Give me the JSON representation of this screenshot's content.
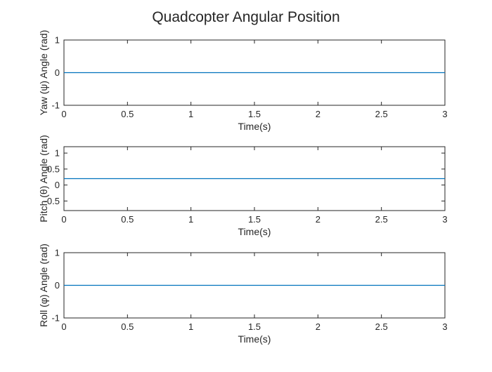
{
  "figure": {
    "title": "Quadcopter Angular Position"
  },
  "chart_data": [
    {
      "type": "line",
      "ylabel": "Yaw (ψ) Angle (rad)",
      "xlabel": "Time(s)",
      "xlim": [
        0,
        3
      ],
      "ylim": [
        -1,
        1
      ],
      "x_ticks": [
        0,
        0.5,
        1,
        1.5,
        2,
        2.5,
        3
      ],
      "x_tick_labels": [
        "0",
        "0.5",
        "1",
        "1.5",
        "2",
        "2.5",
        "3"
      ],
      "y_ticks": [
        -1,
        0,
        1
      ],
      "y_tick_labels": [
        "-1",
        "0",
        "1"
      ],
      "grid": false,
      "series": [
        {
          "color": "#0072BD",
          "x": [
            0,
            3
          ],
          "y": [
            0,
            0
          ]
        }
      ]
    },
    {
      "type": "line",
      "ylabel": "Pitch (θ) Angle (rad)",
      "xlabel": "Time(s)",
      "xlim": [
        0,
        3
      ],
      "ylim": [
        -0.8,
        1.2
      ],
      "x_ticks": [
        0,
        0.5,
        1,
        1.5,
        2,
        2.5,
        3
      ],
      "x_tick_labels": [
        "0",
        "0.5",
        "1",
        "1.5",
        "2",
        "2.5",
        "3"
      ],
      "y_ticks": [
        -0.5,
        0,
        0.5,
        1
      ],
      "y_tick_labels": [
        "-0.5",
        "0",
        "0.5",
        "1"
      ],
      "grid": false,
      "series": [
        {
          "color": "#0072BD",
          "x": [
            0,
            3
          ],
          "y": [
            0.2,
            0.2
          ]
        }
      ]
    },
    {
      "type": "line",
      "ylabel": "Roll (φ) Angle (rad)",
      "xlabel": "Time(s)",
      "xlim": [
        0,
        3
      ],
      "ylim": [
        -1,
        1
      ],
      "x_ticks": [
        0,
        0.5,
        1,
        1.5,
        2,
        2.5,
        3
      ],
      "x_tick_labels": [
        "0",
        "0.5",
        "1",
        "1.5",
        "2",
        "2.5",
        "3"
      ],
      "y_ticks": [
        -1,
        0,
        1
      ],
      "y_tick_labels": [
        "-1",
        "0",
        "1"
      ],
      "grid": false,
      "series": [
        {
          "color": "#0072BD",
          "x": [
            0,
            3
          ],
          "y": [
            0,
            0
          ]
        }
      ]
    }
  ]
}
